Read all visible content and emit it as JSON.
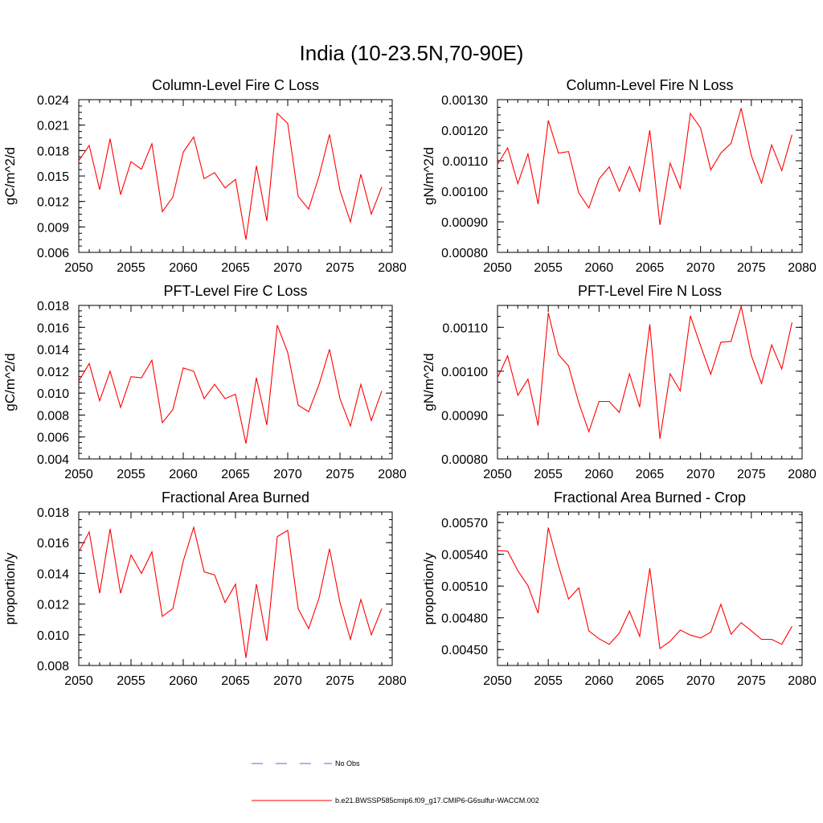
{
  "figure_title": "India (10-23.5N,70-90E)",
  "legend": {
    "obs_label": "No Obs",
    "obs_color": "#6666cc",
    "model_label": "b.e21.BWSSP585cmip6.f09_g17.CMIP6-G6sulfur-WACCM.002",
    "model_color": "#ff0000"
  },
  "chart_data": [
    {
      "type": "line",
      "title": "Column-Level Fire C Loss",
      "ylabel": "gC/m^2/d",
      "xlim": [
        2050,
        2080
      ],
      "ylim": [
        0.006,
        0.024
      ],
      "xticks": [
        "2050",
        "2055",
        "2060",
        "2065",
        "2070",
        "2075",
        "2080"
      ],
      "yticks": [
        "0.006",
        "0.009",
        "0.012",
        "0.015",
        "0.018",
        "0.021",
        "0.024"
      ],
      "series": [
        {
          "color": "#ff0000",
          "x": [
            2050,
            2051,
            2052,
            2053,
            2054,
            2055,
            2056,
            2057,
            2058,
            2059,
            2060,
            2061,
            2062,
            2063,
            2064,
            2065,
            2066,
            2067,
            2068,
            2069,
            2070,
            2071,
            2072,
            2073,
            2074,
            2075,
            2076,
            2077,
            2078,
            2079
          ],
          "values": [
            0.0168,
            0.0186,
            0.0134,
            0.0194,
            0.0128,
            0.0167,
            0.0158,
            0.0188,
            0.0108,
            0.0125,
            0.0178,
            0.0196,
            0.0147,
            0.0154,
            0.0136,
            0.0146,
            0.0075,
            0.0162,
            0.0097,
            0.0224,
            0.0212,
            0.0126,
            0.0111,
            0.015,
            0.0199,
            0.0133,
            0.0096,
            0.0152,
            0.0105,
            0.0137
          ]
        }
      ]
    },
    {
      "type": "line",
      "title": "Column-Level Fire N Loss",
      "ylabel": "gN/m^2/d",
      "xlim": [
        2050,
        2080
      ],
      "ylim": [
        0.0008,
        0.0013
      ],
      "xticks": [
        "2050",
        "2055",
        "2060",
        "2065",
        "2070",
        "2075",
        "2080"
      ],
      "yticks": [
        "0.00080",
        "0.00090",
        "0.00100",
        "0.00110",
        "0.00120",
        "0.00130"
      ],
      "series": [
        {
          "color": "#ff0000",
          "x": [
            2050,
            2051,
            2052,
            2053,
            2054,
            2055,
            2056,
            2057,
            2058,
            2059,
            2060,
            2061,
            2062,
            2063,
            2064,
            2065,
            2066,
            2067,
            2068,
            2069,
            2070,
            2071,
            2072,
            2073,
            2074,
            2075,
            2076,
            2077,
            2078,
            2079
          ],
          "values": [
            0.001088,
            0.001142,
            0.001025,
            0.001122,
            0.000958,
            0.001232,
            0.001125,
            0.00113,
            0.000995,
            0.000945,
            0.00104,
            0.00108,
            0.001,
            0.00108,
            0.001,
            0.0012,
            0.00089,
            0.001092,
            0.00101,
            0.001255,
            0.001207,
            0.00107,
            0.001125,
            0.001157,
            0.001272,
            0.001117,
            0.001027,
            0.001152,
            0.001068,
            0.001185
          ]
        }
      ]
    },
    {
      "type": "line",
      "title": "PFT-Level Fire C Loss",
      "ylabel": "gC/m^2/d",
      "xlim": [
        2050,
        2080
      ],
      "ylim": [
        0.004,
        0.018
      ],
      "xticks": [
        "2050",
        "2055",
        "2060",
        "2065",
        "2070",
        "2075",
        "2080"
      ],
      "yticks": [
        "0.004",
        "0.006",
        "0.008",
        "0.010",
        "0.012",
        "0.014",
        "0.016",
        "0.018"
      ],
      "series": [
        {
          "color": "#ff0000",
          "x": [
            2050,
            2051,
            2052,
            2053,
            2054,
            2055,
            2056,
            2057,
            2058,
            2059,
            2060,
            2061,
            2062,
            2063,
            2064,
            2065,
            2066,
            2067,
            2068,
            2069,
            2070,
            2071,
            2072,
            2073,
            2074,
            2075,
            2076,
            2077,
            2078,
            2079
          ],
          "values": [
            0.0111,
            0.0127,
            0.0093,
            0.012,
            0.0087,
            0.0115,
            0.0114,
            0.013,
            0.0073,
            0.0085,
            0.0123,
            0.012,
            0.0095,
            0.0108,
            0.0095,
            0.0099,
            0.0054,
            0.0114,
            0.0071,
            0.0162,
            0.0137,
            0.0089,
            0.0083,
            0.0108,
            0.014,
            0.0095,
            0.007,
            0.0108,
            0.0075,
            0.0102
          ]
        }
      ]
    },
    {
      "type": "line",
      "title": "PFT-Level Fire N Loss",
      "ylabel": "gN/m^2/d",
      "xlim": [
        2050,
        2080
      ],
      "ylim": [
        0.0008,
        0.00115
      ],
      "xticks": [
        "2050",
        "2055",
        "2060",
        "2065",
        "2070",
        "2075",
        "2080"
      ],
      "yticks": [
        "0.00080",
        "0.00090",
        "0.00100",
        "0.00110"
      ],
      "series": [
        {
          "color": "#ff0000",
          "x": [
            2050,
            2051,
            2052,
            2053,
            2054,
            2055,
            2056,
            2057,
            2058,
            2059,
            2060,
            2061,
            2062,
            2063,
            2064,
            2065,
            2066,
            2067,
            2068,
            2069,
            2070,
            2071,
            2072,
            2073,
            2074,
            2075,
            2076,
            2077,
            2078,
            2079
          ],
          "values": [
            0.000985,
            0.001035,
            0.000945,
            0.000982,
            0.000876,
            0.001133,
            0.001038,
            0.001012,
            0.000928,
            0.000862,
            0.000931,
            0.000931,
            0.000906,
            0.000994,
            0.000918,
            0.001107,
            0.000846,
            0.000994,
            0.000955,
            0.001126,
            0.001058,
            0.000993,
            0.001066,
            0.001068,
            0.001148,
            0.001036,
            0.000972,
            0.00106,
            0.001005,
            0.001111
          ]
        }
      ]
    },
    {
      "type": "line",
      "title": "Fractional Area Burned",
      "ylabel": "proportion/y",
      "xlim": [
        2050,
        2080
      ],
      "ylim": [
        0.008,
        0.018
      ],
      "xticks": [
        "2050",
        "2055",
        "2060",
        "2065",
        "2070",
        "2075",
        "2080"
      ],
      "yticks": [
        "0.008",
        "0.010",
        "0.012",
        "0.014",
        "0.016",
        "0.018"
      ],
      "series": [
        {
          "color": "#ff0000",
          "x": [
            2050,
            2051,
            2052,
            2053,
            2054,
            2055,
            2056,
            2057,
            2058,
            2059,
            2060,
            2061,
            2062,
            2063,
            2064,
            2065,
            2066,
            2067,
            2068,
            2069,
            2070,
            2071,
            2072,
            2073,
            2074,
            2075,
            2076,
            2077,
            2078,
            2079
          ],
          "values": [
            0.0154,
            0.0167,
            0.0127,
            0.0169,
            0.0127,
            0.0152,
            0.014,
            0.0154,
            0.0112,
            0.0117,
            0.0148,
            0.017,
            0.0141,
            0.0139,
            0.0121,
            0.0133,
            0.0085,
            0.0133,
            0.0096,
            0.0164,
            0.0168,
            0.0117,
            0.0104,
            0.0124,
            0.0156,
            0.0121,
            0.0097,
            0.0123,
            0.01,
            0.0117
          ]
        }
      ]
    },
    {
      "type": "line",
      "title": "Fractional Area Burned - Crop",
      "ylabel": "proportion/y",
      "xlim": [
        2050,
        2080
      ],
      "ylim": [
        0.00435,
        0.0058
      ],
      "xticks": [
        "2050",
        "2055",
        "2060",
        "2065",
        "2070",
        "2075",
        "2080"
      ],
      "yticks": [
        "0.00450",
        "0.00480",
        "0.00510",
        "0.00540",
        "0.00570"
      ],
      "series": [
        {
          "color": "#ff0000",
          "x": [
            2050,
            2051,
            2052,
            2053,
            2054,
            2055,
            2056,
            2057,
            2058,
            2059,
            2060,
            2061,
            2062,
            2063,
            2064,
            2065,
            2066,
            2067,
            2068,
            2069,
            2070,
            2071,
            2072,
            2073,
            2074,
            2075,
            2076,
            2077,
            2078,
            2079
          ],
          "values": [
            0.005435,
            0.00543,
            0.005245,
            0.005103,
            0.004844,
            0.005652,
            0.005295,
            0.004977,
            0.005083,
            0.004676,
            0.004603,
            0.00455,
            0.004656,
            0.004864,
            0.004625,
            0.005268,
            0.00451,
            0.004578,
            0.004685,
            0.004637,
            0.00461,
            0.004664,
            0.004928,
            0.004645,
            0.004755,
            0.004677,
            0.004597,
            0.004597,
            0.00455,
            0.00472
          ]
        }
      ]
    }
  ]
}
